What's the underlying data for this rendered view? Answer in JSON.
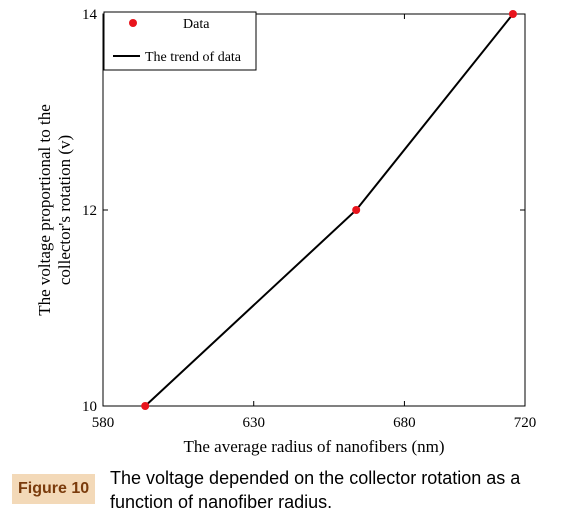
{
  "chart_data": {
    "type": "line",
    "xlabel": "The average radius of nanofibers (nm)",
    "ylabel_line1": "The voltage proportional to the",
    "ylabel_line2": "collector's rotation (v)",
    "xlim": [
      580,
      720
    ],
    "ylim": [
      10,
      14
    ],
    "xticks": [
      580,
      630,
      680,
      720
    ],
    "yticks": [
      10,
      12,
      14
    ],
    "grid": false,
    "legend_position": "top-left",
    "series": [
      {
        "name": "Data",
        "style": "markers",
        "color": "#e8141c",
        "x": [
          594,
          664,
          716
        ],
        "y": [
          10,
          12,
          14
        ]
      },
      {
        "name": "The trend of data",
        "style": "line",
        "color": "#000000",
        "x": [
          594,
          664,
          716
        ],
        "y": [
          10,
          12,
          14
        ]
      }
    ]
  },
  "caption": {
    "label": "Figure 10",
    "text": "The voltage depended on the collector rotation as a function of nanofiber radius."
  }
}
